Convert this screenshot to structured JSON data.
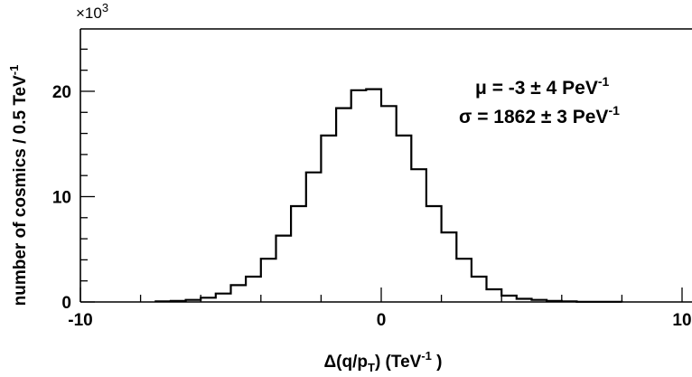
{
  "chart_data": {
    "type": "histogram",
    "xlabel": "Δ(q/p",
    "xlabel_sub": "T",
    "xlabel_unit": ") (TeV",
    "xlabel_sup": "-1",
    "xlabel_close": " )",
    "ylabel": "number of cosmics / 0.5 TeV",
    "ylabel_sup": "-1",
    "y_multiplier_base": "×10",
    "y_multiplier_exp": "3",
    "xlim": [
      -10,
      10
    ],
    "ylim": [
      0,
      22
    ],
    "x_tick_labels": [
      "-10",
      "0",
      "10"
    ],
    "y_tick_labels": [
      "0",
      "10",
      "20"
    ],
    "bin_width": 0.5,
    "bin_edges": [
      -7.5,
      -7,
      -6.5,
      -6,
      -5.5,
      -5,
      -4.5,
      -4,
      -3.5,
      -3,
      -2.5,
      -2,
      -1.5,
      -1,
      -0.5,
      0,
      0.5,
      1,
      1.5,
      2,
      2.5,
      3,
      3.5,
      4,
      4.5,
      5,
      5.5,
      6,
      6.5,
      7,
      7.5,
      8
    ],
    "values": [
      0.05,
      0.1,
      0.2,
      0.4,
      0.8,
      1.6,
      2.4,
      4.1,
      6.3,
      9.1,
      12.3,
      15.8,
      18.4,
      20.1,
      20.2,
      18.6,
      15.8,
      12.6,
      9.1,
      6.6,
      4.1,
      2.4,
      1.2,
      0.6,
      0.3,
      0.2,
      0.1,
      0.05,
      0.02,
      0.02,
      0.02
    ],
    "stats": {
      "mu_symbol": "μ",
      "mu_text": " = -3 ± 4 PeV",
      "mu_sup": "-1",
      "sigma_symbol": "σ",
      "sigma_text": " = 1862 ± 3 PeV",
      "sigma_sup": "-1"
    }
  }
}
